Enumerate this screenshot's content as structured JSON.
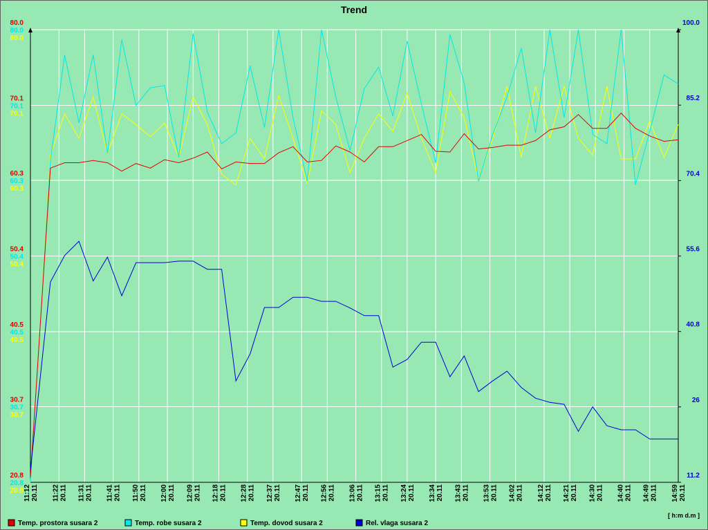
{
  "chart_data": {
    "type": "line",
    "title": "Trend",
    "xlabel": "[ h:m d.m ]",
    "x_sublabel": "20.11",
    "x": [
      "11:12",
      "11:19",
      "11:24",
      "11:29",
      "11:34",
      "11:39",
      "11:44",
      "11:49",
      "11:54",
      "11:59",
      "12:04",
      "12:09",
      "12:14",
      "12:19",
      "12:24",
      "12:29",
      "12:34",
      "12:39",
      "12:44",
      "12:49",
      "12:54",
      "12:59",
      "13:04",
      "13:09",
      "13:14",
      "13:19",
      "13:24",
      "13:29",
      "13:34",
      "13:39",
      "13:44",
      "13:49",
      "13:54",
      "13:59",
      "14:04",
      "14:09",
      "14:14",
      "14:19",
      "14:24",
      "14:29",
      "14:34",
      "14:39",
      "14:44",
      "14:49",
      "14:54",
      "14:59"
    ],
    "xlim": [
      "11:12",
      "14:59"
    ],
    "xticks": [
      "11:12",
      "11:22",
      "11:31",
      "11:41",
      "11:50",
      "12:00",
      "12:09",
      "12:18",
      "12:28",
      "12:37",
      "12:47",
      "12:56",
      "13:06",
      "13:15",
      "13:24",
      "13:34",
      "13:43",
      "13:53",
      "14:02",
      "14:12",
      "14:21",
      "14:30",
      "14:40",
      "14:49",
      "14:59"
    ],
    "ylim": [
      20.8,
      80.0
    ],
    "yticks": [
      20.8,
      30.7,
      40.5,
      50.4,
      60.3,
      70.1,
      {
        "value": 80,
        "label": "80.0"
      }
    ],
    "y2lim": [
      11.2,
      100.0
    ],
    "y2ticks": [
      11.2,
      26.0,
      40.8,
      55.6,
      70.4,
      85.2,
      {
        "value": 100,
        "label": "100.0"
      }
    ],
    "grid": true,
    "legend": "bottom",
    "series": [
      {
        "name": "Temp. prostora susara 2",
        "color": "#e00000",
        "axis": "y",
        "values": [
          21.5,
          61.9,
          62.6,
          62.6,
          62.9,
          62.6,
          61.5,
          62.5,
          61.9,
          63.0,
          62.6,
          63.2,
          64.0,
          61.8,
          62.7,
          62.5,
          62.5,
          63.9,
          64.7,
          62.7,
          62.9,
          64.8,
          64.0,
          62.7,
          64.7,
          64.7,
          65.5,
          66.3,
          64.1,
          64.0,
          66.4,
          64.4,
          64.6,
          64.9,
          64.9,
          65.5,
          66.9,
          67.3,
          68.9,
          67.1,
          67.1,
          69.1,
          67.1,
          66.1,
          65.4,
          65.6
        ]
      },
      {
        "name": "Temp. robe susara 2",
        "color": "#00e8e8",
        "axis": "y",
        "values": [
          20.8,
          62.9,
          76.7,
          67.8,
          76.7,
          63.8,
          78.7,
          70.1,
          72.4,
          72.7,
          63.3,
          79.5,
          69.2,
          65.1,
          66.5,
          75.3,
          67.2,
          80.0,
          68.5,
          60.2,
          80.0,
          71.2,
          64.2,
          72.3,
          75.1,
          68.7,
          78.5,
          70.3,
          62.6,
          79.4,
          73.0,
          60.2,
          66.3,
          71.2,
          77.6,
          66.5,
          80.0,
          68.5,
          80.0,
          66.3,
          65.1,
          80.0,
          59.7,
          66.7,
          74.1,
          72.9
        ]
      },
      {
        "name": "Temp. dovod susara 2",
        "color": "#ffff00",
        "axis": "y",
        "values": [
          20.8,
          63.6,
          69.0,
          65.8,
          71.2,
          63.8,
          69.0,
          67.6,
          66.0,
          67.8,
          63.3,
          71.2,
          67.6,
          61.1,
          59.7,
          65.8,
          63.1,
          71.4,
          65.8,
          59.9,
          69.4,
          67.6,
          61.3,
          65.8,
          69.0,
          66.7,
          71.7,
          65.8,
          61.3,
          71.9,
          68.5,
          60.4,
          65.8,
          72.6,
          63.3,
          72.6,
          65.8,
          72.6,
          65.8,
          63.6,
          72.6,
          63.1,
          63.1,
          68.1,
          63.3,
          67.6
        ]
      },
      {
        "name": "Rel. vlaga susara 2",
        "color": "#0000d0",
        "axis": "y2",
        "values": [
          13.6,
          50.5,
          55.7,
          58.5,
          50.7,
          55.4,
          47.8,
          54.3,
          54.3,
          54.3,
          54.6,
          54.6,
          53.0,
          53.0,
          31.1,
          36.4,
          45.5,
          45.5,
          47.5,
          47.5,
          46.7,
          46.7,
          45.4,
          43.9,
          43.9,
          33.8,
          35.3,
          38.7,
          38.7,
          31.9,
          36.0,
          29.0,
          31.1,
          33.0,
          29.8,
          27.7,
          26.9,
          26.5,
          21.2,
          26.0,
          22.3,
          21.5,
          21.5,
          19.7,
          19.7,
          19.7
        ]
      }
    ]
  }
}
